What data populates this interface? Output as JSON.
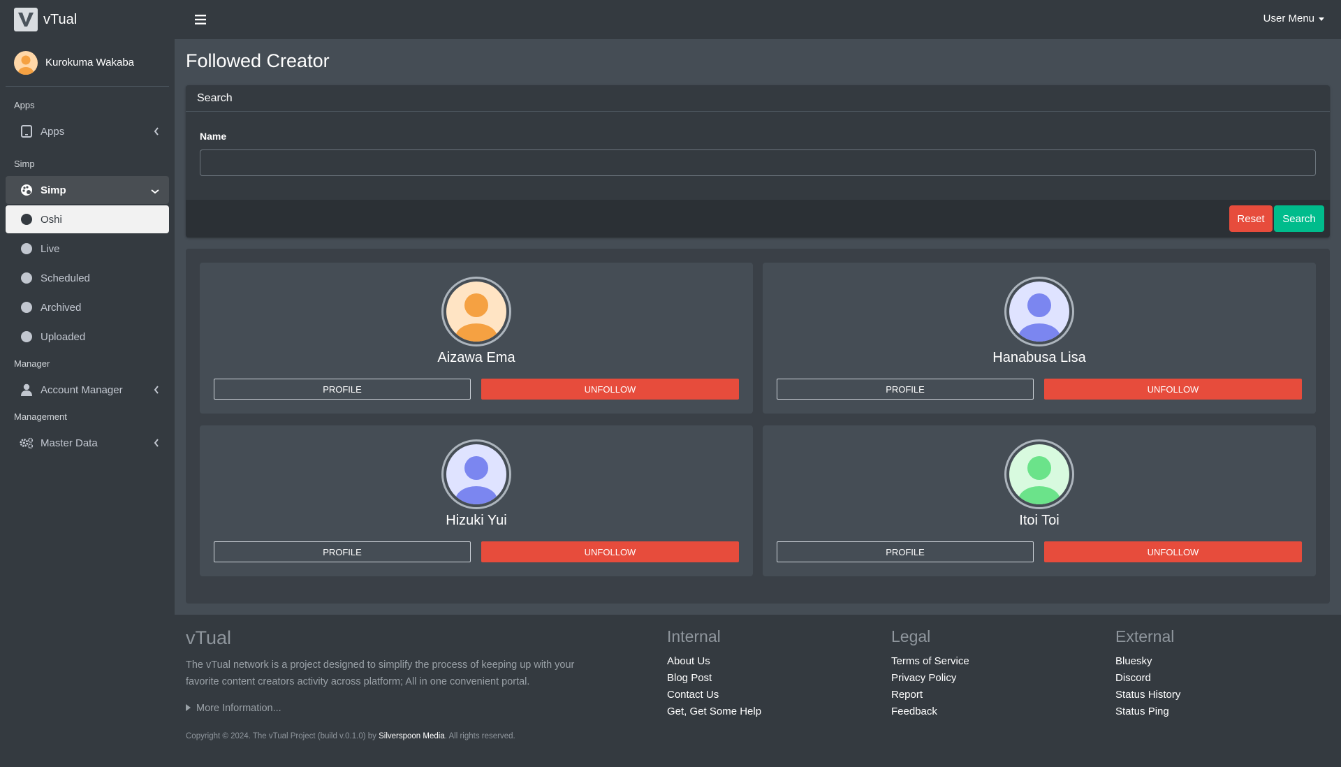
{
  "app": {
    "title": "vTual"
  },
  "header": {
    "user_menu": "User Menu"
  },
  "sidebar": {
    "user_name": "Kurokuma Wakaba",
    "sections": {
      "apps": "Apps",
      "simp": "Simp",
      "manager": "Manager",
      "management": "Management"
    },
    "items": {
      "apps": "Apps",
      "simp": "Simp",
      "oshi": "Oshi",
      "live": "Live",
      "scheduled": "Scheduled",
      "archived": "Archived",
      "uploaded": "Uploaded",
      "account_manager": "Account Manager",
      "master_data": "Master Data"
    }
  },
  "page": {
    "title": "Followed Creator"
  },
  "search": {
    "header": "Search",
    "name_label": "Name",
    "name_value": "",
    "reset_label": "Reset",
    "search_label": "Search"
  },
  "creators": [
    {
      "name": "Aizawa Ema",
      "profile": "PROFILE",
      "unfollow": "UNFOLLOW",
      "color": "#f5a142",
      "bg": "#ffe4c4"
    },
    {
      "name": "Hanabusa Lisa",
      "profile": "PROFILE",
      "unfollow": "UNFOLLOW",
      "color": "#7b86f0",
      "bg": "#dfe3ff"
    },
    {
      "name": "Hizuki Yui",
      "profile": "PROFILE",
      "unfollow": "UNFOLLOW",
      "color": "#7b86f0",
      "bg": "#dfe3ff"
    },
    {
      "name": "Itoi Toi",
      "profile": "PROFILE",
      "unfollow": "UNFOLLOW",
      "color": "#6be38a",
      "bg": "#d8fadf"
    }
  ],
  "footer": {
    "brand": "vTual",
    "description": "The vTual network is a project designed to simplify the process of keeping up with your favorite content creators activity across platform; All in one convenient portal.",
    "more": "More Information...",
    "internal": {
      "title": "Internal",
      "links": [
        "About Us",
        "Blog Post",
        "Contact Us",
        "Get, Get Some Help"
      ]
    },
    "legal": {
      "title": "Legal",
      "links": [
        "Terms of Service",
        "Privacy Policy",
        "Report",
        "Feedback"
      ]
    },
    "external": {
      "title": "External",
      "links": [
        "Bluesky",
        "Discord",
        "Status History",
        "Status Ping"
      ]
    },
    "copyright_prefix": "Copyright © 2024. The vTual Project (build v.0.1.0) by",
    "copyright_company": "Silverspoon Media",
    "copyright_suffix": ". All rights reserved."
  }
}
